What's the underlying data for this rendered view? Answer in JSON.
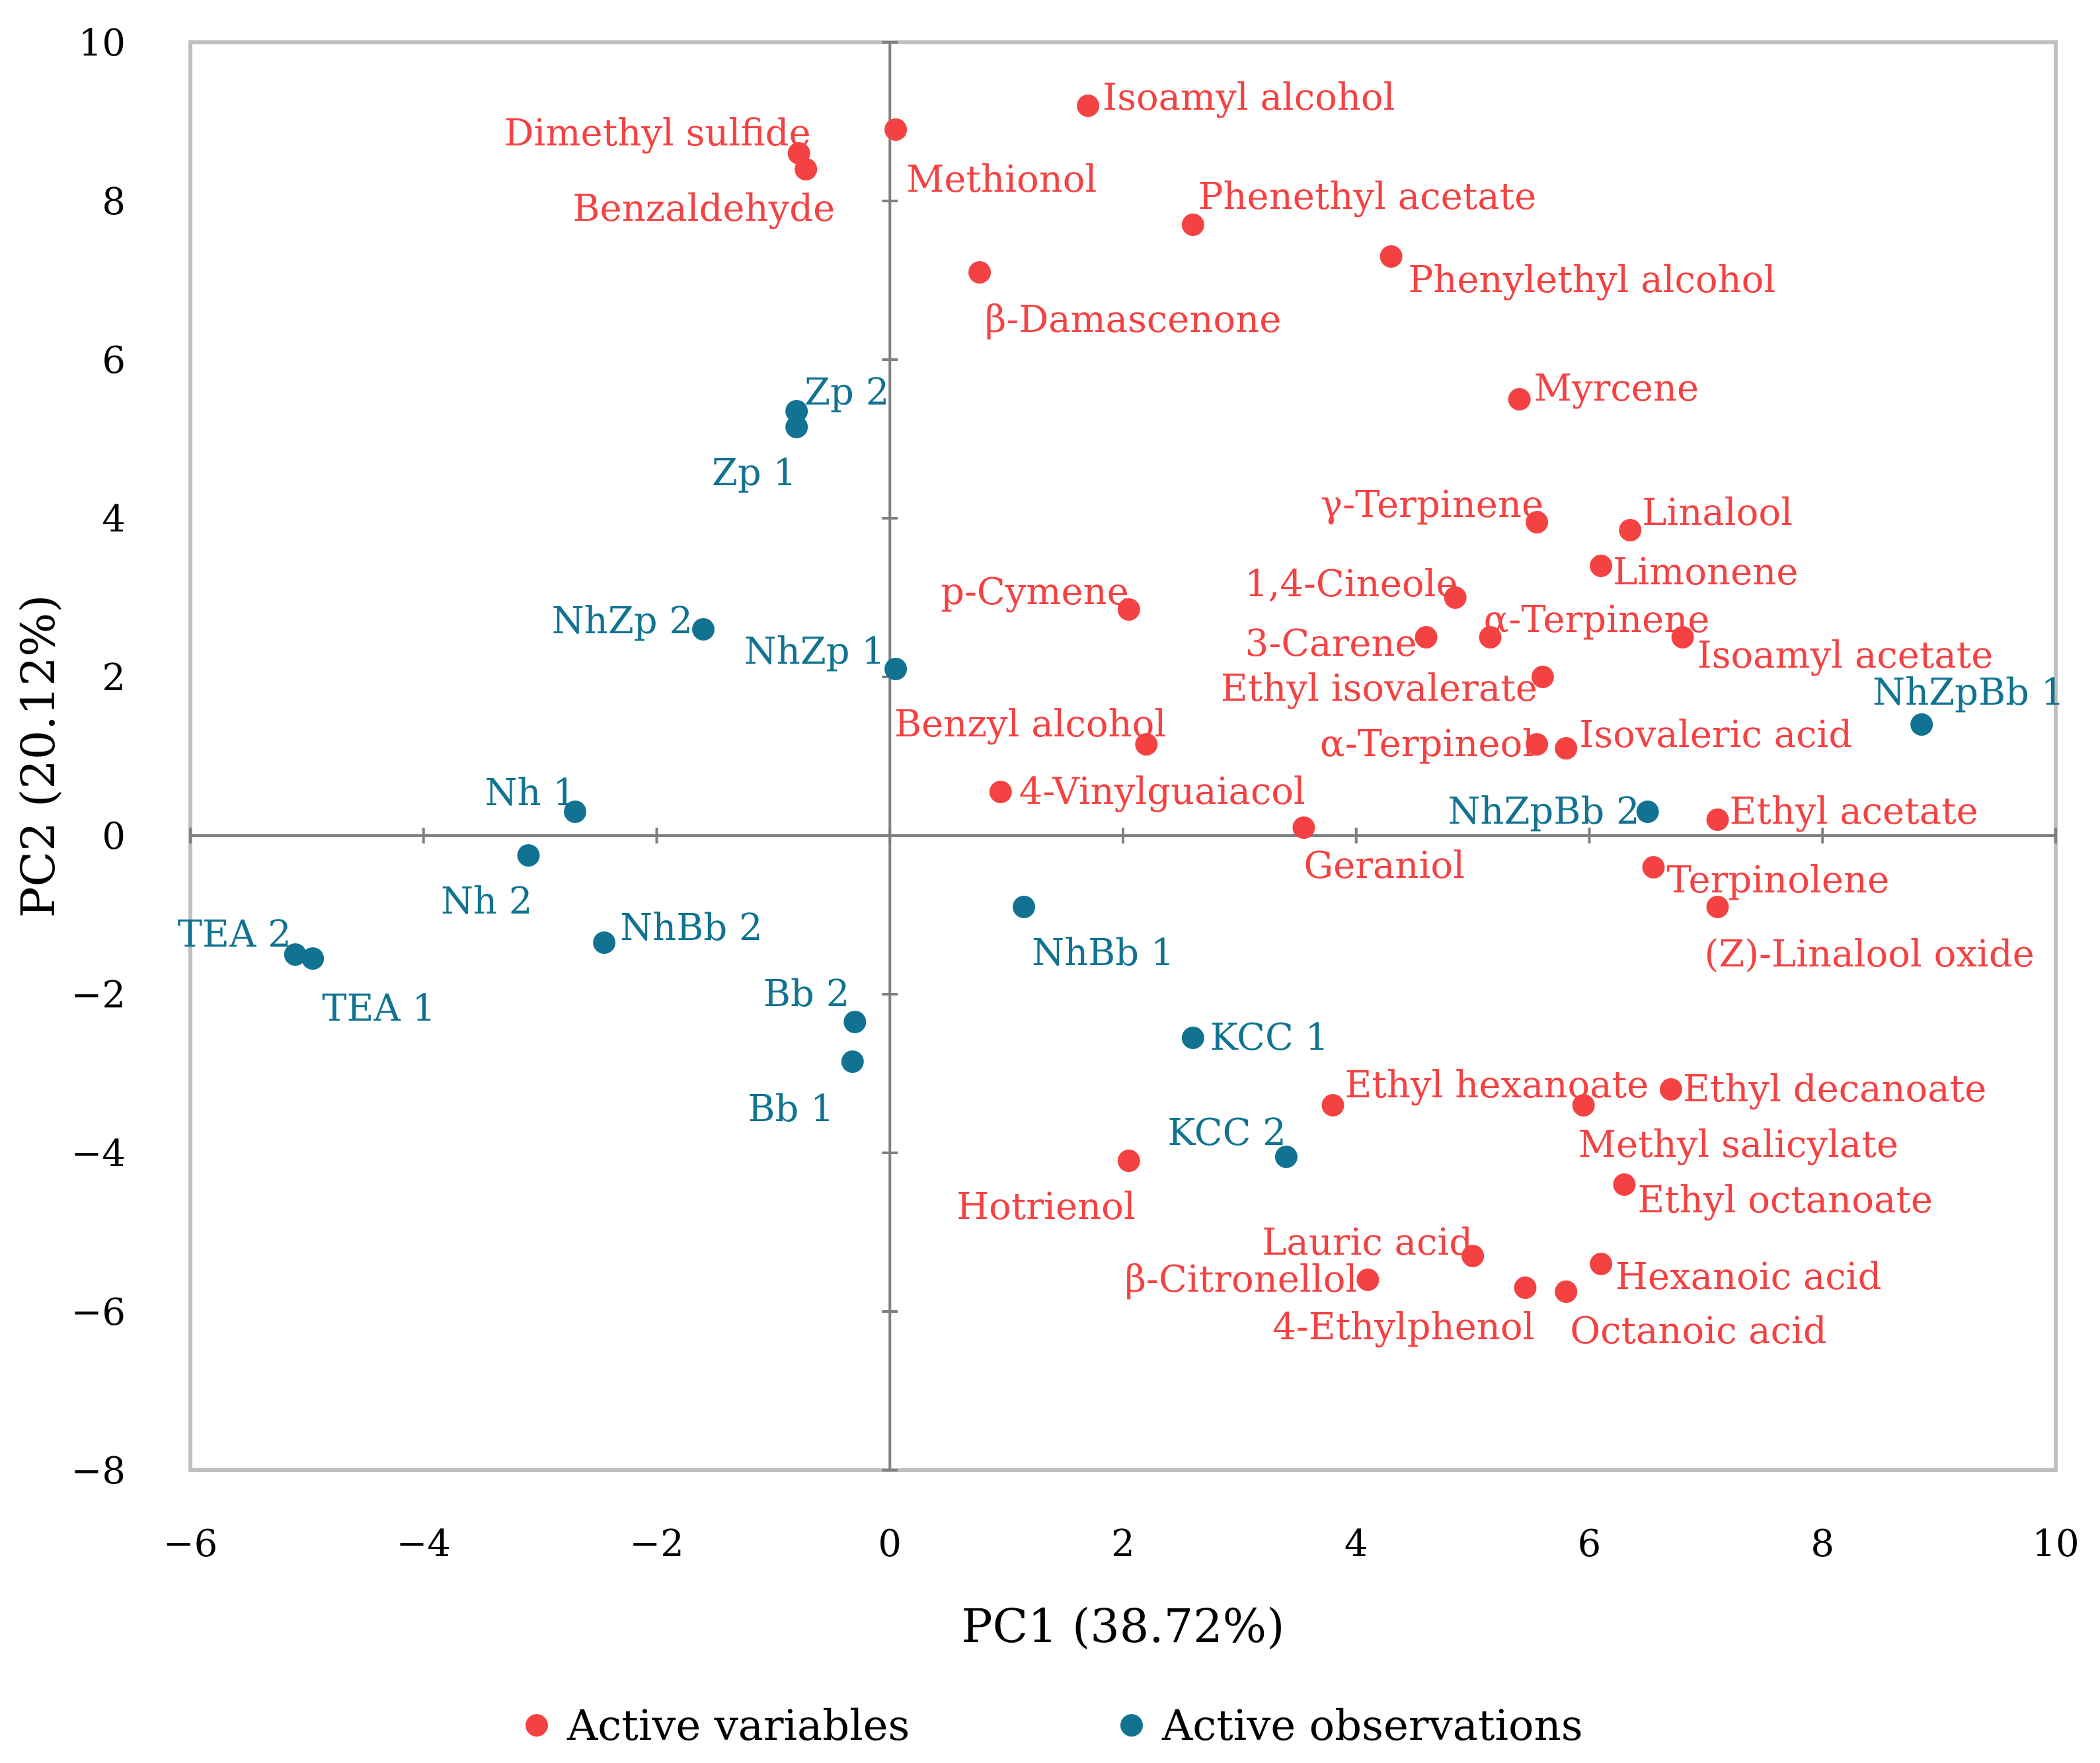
{
  "chart_data": {
    "type": "scatter",
    "title": "",
    "xlabel": "PC1 (38.72%)",
    "ylabel": "PC2 (20.12%)",
    "xlim": [
      -6,
      10
    ],
    "ylim": [
      -8,
      10
    ],
    "xticks": [
      "−6",
      "−4",
      "−2",
      "0",
      "2",
      "4",
      "6",
      "8",
      "10"
    ],
    "yticks": [
      "10",
      "8",
      "6",
      "4",
      "2",
      "0",
      "−2",
      "−4",
      "−6",
      "−8"
    ],
    "grid": false,
    "legend_position": "bottom",
    "series": [
      {
        "name": "Active variables",
        "color": "#f44242",
        "points": [
          {
            "label": "Isoamyl alcohol",
            "x": 1.7,
            "y": 9.2
          },
          {
            "label": "Dimethyl sulfide",
            "x": -0.78,
            "y": 8.6
          },
          {
            "label": "Benzaldehyde",
            "x": -0.72,
            "y": 8.4
          },
          {
            "label": "Methionol",
            "x": 0.05,
            "y": 8.9
          },
          {
            "label": "Phenethyl acetate",
            "x": 2.6,
            "y": 7.7
          },
          {
            "label": "Phenylethyl alcohol",
            "x": 4.3,
            "y": 7.3
          },
          {
            "label": "β-Damascenone",
            "x": 0.77,
            "y": 7.1
          },
          {
            "label": "Myrcene",
            "x": 5.4,
            "y": 5.5
          },
          {
            "label": "γ-Terpinene",
            "x": 5.55,
            "y": 3.95
          },
          {
            "label": "Linalool",
            "x": 6.35,
            "y": 3.85
          },
          {
            "label": "Limonene",
            "x": 6.1,
            "y": 3.4
          },
          {
            "label": "1,4-Cineole",
            "x": 4.85,
            "y": 3.0
          },
          {
            "label": "p-Cymene",
            "x": 2.05,
            "y": 2.85
          },
          {
            "label": "3-Carene",
            "x": 4.6,
            "y": 2.5
          },
          {
            "label": "α-Terpinene",
            "x": 5.15,
            "y": 2.5
          },
          {
            "label": "Isoamyl acetate",
            "x": 6.8,
            "y": 2.5
          },
          {
            "label": "Ethyl isovalerate",
            "x": 5.6,
            "y": 2.0
          },
          {
            "label": "Benzyl alcohol",
            "x": 2.2,
            "y": 1.15
          },
          {
            "label": "α-Terpineol",
            "x": 5.55,
            "y": 1.15
          },
          {
            "label": "Isovaleric acid",
            "x": 5.8,
            "y": 1.1
          },
          {
            "label": "4-Vinylguaiacol",
            "x": 0.95,
            "y": 0.55
          },
          {
            "label": "Geraniol",
            "x": 3.55,
            "y": 0.1
          },
          {
            "label": "Ethyl acetate",
            "x": 7.1,
            "y": 0.2
          },
          {
            "label": "Terpinolene",
            "x": 6.55,
            "y": -0.4
          },
          {
            "label": "(Z)-Linalool oxide",
            "x": 7.1,
            "y": -0.9
          },
          {
            "label": "Ethyl hexanoate",
            "x": 3.8,
            "y": -3.4
          },
          {
            "label": "Ethyl decanoate",
            "x": 6.7,
            "y": -3.2
          },
          {
            "label": "Methyl salicylate",
            "x": 5.95,
            "y": -3.4
          },
          {
            "label": "Hotrienol",
            "x": 2.05,
            "y": -4.1
          },
          {
            "label": "Ethyl octanoate",
            "x": 6.3,
            "y": -4.4
          },
          {
            "label": "Lauric acid",
            "x": 5.0,
            "y": -5.3
          },
          {
            "label": "Hexanoic acid",
            "x": 6.1,
            "y": -5.4
          },
          {
            "label": "β-Citronellol",
            "x": 4.1,
            "y": -5.6
          },
          {
            "label": "4-Ethylphenol",
            "x": 5.45,
            "y": -5.7
          },
          {
            "label": "Octanoic acid",
            "x": 5.8,
            "y": -5.75
          }
        ]
      },
      {
        "name": "Active observations",
        "color": "#117391",
        "points": [
          {
            "label": "Zp 2",
            "x": -0.8,
            "y": 5.35
          },
          {
            "label": "Zp 1",
            "x": -0.8,
            "y": 5.15
          },
          {
            "label": "NhZp 2",
            "x": -1.6,
            "y": 2.6
          },
          {
            "label": "NhZp 1",
            "x": 0.05,
            "y": 2.1
          },
          {
            "label": "Nh 1",
            "x": -2.7,
            "y": 0.3
          },
          {
            "label": "Nh 2",
            "x": -3.1,
            "y": -0.25
          },
          {
            "label": "TEA 2",
            "x": -5.1,
            "y": -1.5
          },
          {
            "label": "TEA 1",
            "x": -4.95,
            "y": -1.55
          },
          {
            "label": "NhBb 2",
            "x": -2.45,
            "y": -1.35
          },
          {
            "label": "NhBb 1",
            "x": 1.15,
            "y": -0.9
          },
          {
            "label": "Bb 2",
            "x": -0.3,
            "y": -2.35
          },
          {
            "label": "Bb 1",
            "x": -0.32,
            "y": -2.85
          },
          {
            "label": "KCC 1",
            "x": 2.6,
            "y": -2.55
          },
          {
            "label": "KCC 2",
            "x": 3.4,
            "y": -4.05
          },
          {
            "label": "NhZpBb 2",
            "x": 6.5,
            "y": 0.3
          },
          {
            "label": "NhZpBb 1",
            "x": 8.85,
            "y": 1.4
          }
        ]
      }
    ]
  }
}
